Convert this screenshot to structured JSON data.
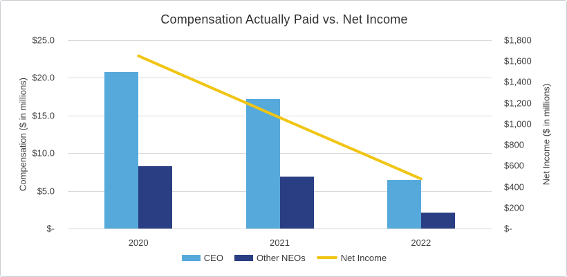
{
  "chart_data": {
    "type": "bar",
    "title": "Compensation Actually Paid vs. Net Income",
    "categories": [
      "2020",
      "2021",
      "2022"
    ],
    "series": [
      {
        "name": "CEO",
        "type": "bar",
        "axis": "left",
        "values": [
          20.8,
          17.2,
          6.4
        ],
        "color": "#56A9DB"
      },
      {
        "name": "Other NEOs",
        "type": "bar",
        "axis": "left",
        "values": [
          8.3,
          6.9,
          2.1
        ],
        "color": "#2A3E84"
      },
      {
        "name": "Net Income",
        "type": "line",
        "axis": "right",
        "values": [
          1650,
          1060,
          475
        ],
        "color": "#F0C514"
      }
    ],
    "left_axis": {
      "label": "Compensation ($ in millions)",
      "min": 0,
      "max": 25,
      "ticks": [
        "$25.0",
        "$20.0",
        "$15.0",
        "$10.0",
        "$5.0",
        "$-"
      ]
    },
    "right_axis": {
      "label": "Net Income ($ in millions)",
      "min": 0,
      "max": 1800,
      "ticks": [
        "$1,800",
        "$1,600",
        "$1,400",
        "$1,200",
        "$1,000",
        "$800",
        "$600",
        "$400",
        "$200",
        "$-"
      ]
    },
    "grid": true,
    "legend_position": "bottom",
    "colors": {
      "gridline": "#d9d9d9",
      "text": "#3f3f3f",
      "title": "#303030",
      "frame_border": "#c9ced3"
    }
  }
}
